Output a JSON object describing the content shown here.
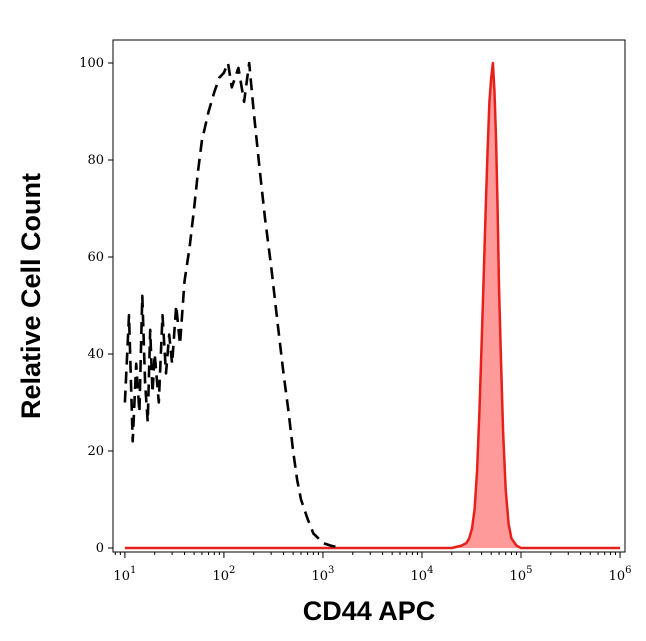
{
  "chart_data": {
    "type": "area",
    "xlabel": "CD44 APC",
    "ylabel": "Relative Cell Count",
    "x_scale": "log",
    "xlim": [
      10,
      1000000
    ],
    "ylim": [
      0,
      100
    ],
    "x_ticks": [
      {
        "value": 10,
        "base": "10",
        "exp": "1"
      },
      {
        "value": 100,
        "base": "10",
        "exp": "2"
      },
      {
        "value": 1000,
        "base": "10",
        "exp": "3"
      },
      {
        "value": 10000,
        "base": "10",
        "exp": "4"
      },
      {
        "value": 100000,
        "base": "10",
        "exp": "5"
      },
      {
        "value": 1000000,
        "base": "10",
        "exp": "6"
      }
    ],
    "y_ticks": [
      "0",
      "20",
      "40",
      "60",
      "80",
      "100"
    ],
    "colors": {
      "stained_line": "#e8201c",
      "stained_fill": "#ff9a9a",
      "control_line": "#000000"
    },
    "series": [
      {
        "style": "dashed-black",
        "points": [
          [
            10,
            30
          ],
          [
            11,
            48
          ],
          [
            12,
            22
          ],
          [
            13,
            38
          ],
          [
            14,
            28
          ],
          [
            15,
            52
          ],
          [
            16,
            34
          ],
          [
            17,
            26
          ],
          [
            18,
            45
          ],
          [
            19,
            32
          ],
          [
            20,
            40
          ],
          [
            22,
            30
          ],
          [
            24,
            48
          ],
          [
            26,
            36
          ],
          [
            28,
            44
          ],
          [
            30,
            38
          ],
          [
            33,
            50
          ],
          [
            36,
            42
          ],
          [
            40,
            55
          ],
          [
            45,
            62
          ],
          [
            50,
            70
          ],
          [
            55,
            78
          ],
          [
            60,
            84
          ],
          [
            70,
            90
          ],
          [
            80,
            94
          ],
          [
            90,
            97
          ],
          [
            100,
            98
          ],
          [
            110,
            100
          ],
          [
            120,
            95
          ],
          [
            140,
            99
          ],
          [
            160,
            92
          ],
          [
            180,
            100
          ],
          [
            200,
            90
          ],
          [
            230,
            78
          ],
          [
            260,
            68
          ],
          [
            300,
            58
          ],
          [
            350,
            46
          ],
          [
            400,
            36
          ],
          [
            450,
            28
          ],
          [
            500,
            20
          ],
          [
            550,
            14
          ],
          [
            600,
            10
          ],
          [
            700,
            6
          ],
          [
            800,
            3
          ],
          [
            900,
            2
          ],
          [
            1000,
            1
          ],
          [
            1200,
            0.5
          ],
          [
            1500,
            0
          ]
        ]
      },
      {
        "style": "solid-red-filled",
        "points": [
          [
            10,
            0
          ],
          [
            1000,
            0
          ],
          [
            5000,
            0
          ],
          [
            20000,
            0
          ],
          [
            25000,
            0.5
          ],
          [
            28000,
            1
          ],
          [
            30000,
            2
          ],
          [
            32000,
            4
          ],
          [
            34000,
            8
          ],
          [
            36000,
            16
          ],
          [
            38000,
            28
          ],
          [
            40000,
            42
          ],
          [
            42000,
            56
          ],
          [
            44000,
            70
          ],
          [
            46000,
            82
          ],
          [
            48000,
            92
          ],
          [
            50000,
            97
          ],
          [
            52000,
            100
          ],
          [
            54000,
            94
          ],
          [
            56000,
            84
          ],
          [
            58000,
            70
          ],
          [
            60000,
            54
          ],
          [
            63000,
            38
          ],
          [
            66000,
            24
          ],
          [
            70000,
            12
          ],
          [
            75000,
            5
          ],
          [
            80000,
            2
          ],
          [
            90000,
            0.5
          ],
          [
            100000,
            0
          ],
          [
            1000000,
            0
          ]
        ]
      }
    ]
  }
}
